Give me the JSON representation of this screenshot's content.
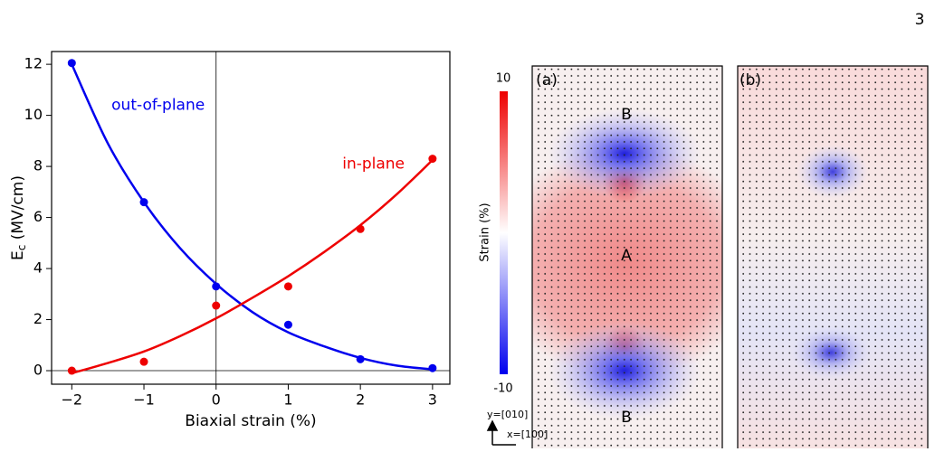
{
  "page_number": "3",
  "chart_data": {
    "type": "scatter_fit",
    "xlabel": "Biaxial strain (%)",
    "ylabel": "E",
    "ylabel_sub": "c",
    "ylabel_rest": " (MV/cm)",
    "x": [
      -2,
      -1,
      0,
      1,
      2,
      3
    ],
    "fit_x": [
      -2,
      -1.5,
      -1,
      -0.5,
      0,
      0.5,
      1,
      1.5,
      2,
      2.5,
      3
    ],
    "series": [
      {
        "name": "out-of-plane",
        "color": "#0000ee",
        "values": [
          12.05,
          6.6,
          3.3,
          1.8,
          0.45,
          0.1
        ],
        "fit_values": [
          12.0,
          8.9,
          6.6,
          4.8,
          3.4,
          2.3,
          1.5,
          0.95,
          0.5,
          0.2,
          0.05
        ]
      },
      {
        "name": "in-plane",
        "color": "#ee0000",
        "values": [
          0,
          0.35,
          2.55,
          3.3,
          5.55,
          8.3
        ],
        "fit_values": [
          -0.1,
          0.3,
          0.75,
          1.35,
          2.05,
          2.85,
          3.7,
          4.65,
          5.7,
          6.9,
          8.25
        ]
      }
    ],
    "xlim": [
      -2.28,
      3.24
    ],
    "ylim": [
      -0.53,
      12.5
    ],
    "xticks": [
      {
        "value": -2,
        "label": "−2"
      },
      {
        "value": -1,
        "label": "−1"
      },
      0,
      1,
      2,
      3
    ],
    "yticks": [
      0,
      2,
      4,
      6,
      8,
      10,
      12
    ]
  },
  "strain_maps": {
    "colorbar": {
      "label": "Strain (%)",
      "max_label": "10",
      "min_label": "-10"
    },
    "panels": [
      {
        "label": "(a)",
        "regions": [
          "B",
          "A",
          "B"
        ]
      },
      {
        "label": "(b)"
      }
    ],
    "axes": {
      "y": "y=[010]",
      "x": "x=[100]"
    }
  }
}
